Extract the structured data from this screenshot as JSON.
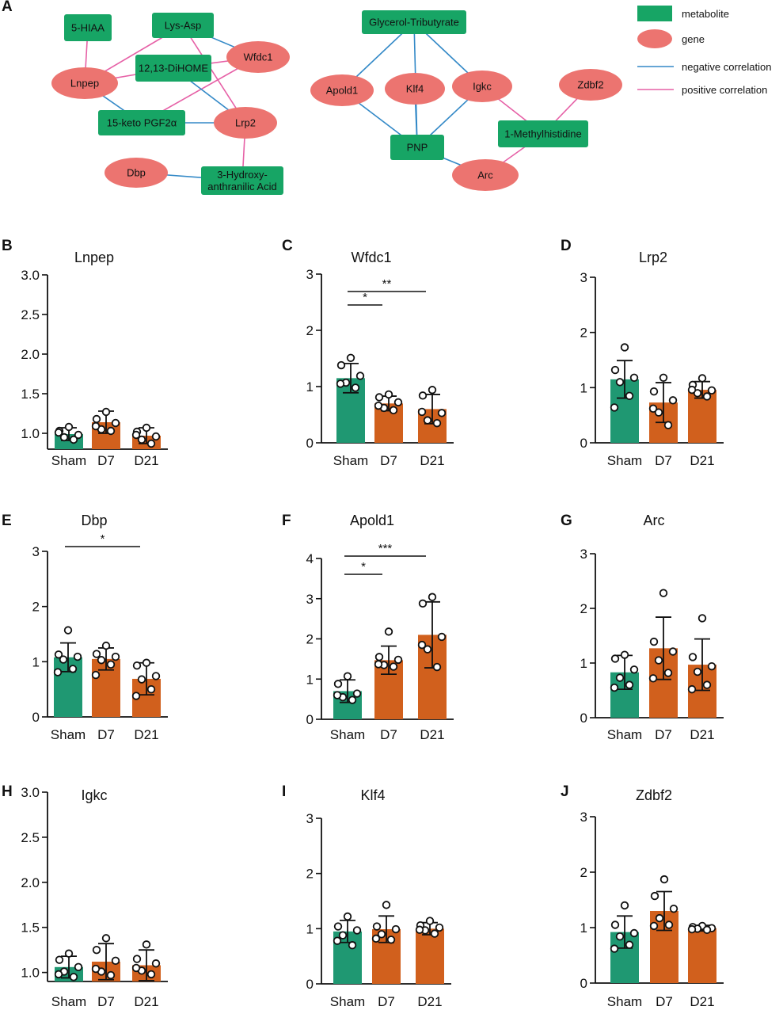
{
  "panel_a": {
    "letter": "A",
    "legend": [
      {
        "id": "metabolite",
        "label": "metabolite",
        "kind": "metabolite"
      },
      {
        "id": "gene",
        "label": "gene",
        "kind": "gene"
      },
      {
        "id": "neg",
        "label": "negative correlation",
        "kind": "neg"
      },
      {
        "id": "pos",
        "label": "positive correlation",
        "kind": "pos"
      }
    ],
    "nodes": [
      {
        "id": "5hiaa",
        "kind": "metabolite",
        "lines": [
          "5-HIAA"
        ]
      },
      {
        "id": "lysasp",
        "kind": "metabolite",
        "lines": [
          "Lys-Asp"
        ]
      },
      {
        "id": "wfdc1",
        "kind": "gene",
        "lines": [
          "Wfdc1"
        ]
      },
      {
        "id": "lnpep",
        "kind": "gene",
        "lines": [
          "Lnpep"
        ]
      },
      {
        "id": "dihome",
        "kind": "metabolite",
        "lines": [
          "12,13-DiHOME"
        ]
      },
      {
        "id": "pgf2a",
        "kind": "metabolite",
        "lines": [
          "15-keto PGF2α"
        ]
      },
      {
        "id": "lrp2",
        "kind": "gene",
        "lines": [
          "Lrp2"
        ]
      },
      {
        "id": "dbp",
        "kind": "gene",
        "lines": [
          "Dbp"
        ]
      },
      {
        "id": "haa",
        "kind": "metabolite",
        "lines": [
          "3-Hydroxy-",
          "anthranilic Acid"
        ]
      },
      {
        "id": "glycerol",
        "kind": "metabolite",
        "lines": [
          "Glycerol-Tributyrate"
        ]
      },
      {
        "id": "apold1",
        "kind": "gene",
        "lines": [
          "Apold1"
        ]
      },
      {
        "id": "klf4",
        "kind": "gene",
        "lines": [
          "Klf4"
        ]
      },
      {
        "id": "igkc",
        "kind": "gene",
        "lines": [
          "Igkc"
        ]
      },
      {
        "id": "zdbf2",
        "kind": "gene",
        "lines": [
          "Zdbf2"
        ]
      },
      {
        "id": "pnp",
        "kind": "metabolite",
        "lines": [
          "PNP"
        ]
      },
      {
        "id": "methylhis",
        "kind": "metabolite",
        "lines": [
          "1-Methylhistidine"
        ]
      },
      {
        "id": "arc",
        "kind": "gene",
        "lines": [
          "Arc"
        ]
      }
    ],
    "edges": [
      {
        "from": "5hiaa",
        "to": "lnpep",
        "sign": "positive"
      },
      {
        "from": "lysasp",
        "to": "lnpep",
        "sign": "positive"
      },
      {
        "from": "lysasp",
        "to": "wfdc1",
        "sign": "negative"
      },
      {
        "from": "lysasp",
        "to": "lrp2",
        "sign": "positive"
      },
      {
        "from": "lnpep",
        "to": "dihome",
        "sign": "positive"
      },
      {
        "from": "lnpep",
        "to": "pgf2a",
        "sign": "negative"
      },
      {
        "from": "wfdc1",
        "to": "dihome",
        "sign": "positive"
      },
      {
        "from": "wfdc1",
        "to": "pgf2a",
        "sign": "positive"
      },
      {
        "from": "dihome",
        "to": "lrp2",
        "sign": "negative"
      },
      {
        "from": "pgf2a",
        "to": "lrp2",
        "sign": "negative"
      },
      {
        "from": "lrp2",
        "to": "haa",
        "sign": "positive"
      },
      {
        "from": "dbp",
        "to": "haa",
        "sign": "negative"
      },
      {
        "from": "glycerol",
        "to": "apold1",
        "sign": "negative"
      },
      {
        "from": "glycerol",
        "to": "pnp",
        "sign": "negative"
      },
      {
        "from": "glycerol",
        "to": "igkc",
        "sign": "negative"
      },
      {
        "from": "apold1",
        "to": "pnp",
        "sign": "negative"
      },
      {
        "from": "klf4",
        "to": "pnp",
        "sign": "negative"
      },
      {
        "from": "igkc",
        "to": "pnp",
        "sign": "negative"
      },
      {
        "from": "igkc",
        "to": "methylhis",
        "sign": "positive"
      },
      {
        "from": "zdbf2",
        "to": "methylhis",
        "sign": "positive"
      },
      {
        "from": "pnp",
        "to": "arc",
        "sign": "negative"
      },
      {
        "from": "arc",
        "to": "methylhis",
        "sign": "positive"
      }
    ]
  },
  "colors": {
    "sham": "#1f9872",
    "treated": "#d1601d",
    "metabolite": "#17a565",
    "gene": "#ec7470",
    "negative_edge": "#3389c7",
    "positive_edge": "#e660a6",
    "text": "#111111",
    "axis": "#111111"
  },
  "chart_data": [
    {
      "letter": "B",
      "title": "Lnpep",
      "type": "bar",
      "categories": [
        "Sham",
        "D7",
        "D21"
      ],
      "values": [
        0.99,
        1.14,
        0.97
      ],
      "sd": [
        0.08,
        0.14,
        0.1
      ],
      "points": [
        [
          1.08,
          1.03,
          0.98,
          0.95,
          0.92,
          1.01
        ],
        [
          1.27,
          1.18,
          1.13,
          1.05,
          1.03,
          1.09
        ],
        [
          1.07,
          1.02,
          0.96,
          0.92,
          0.87,
          0.98
        ]
      ],
      "ylim": [
        0.8,
        3.0
      ],
      "yticks": [
        "1.0",
        "1.5",
        "2.0",
        "2.5",
        "3.0"
      ],
      "significance": []
    },
    {
      "letter": "C",
      "title": "Wfdc1",
      "type": "bar",
      "categories": [
        "Sham",
        "D7",
        "D21"
      ],
      "values": [
        1.15,
        0.7,
        0.6
      ],
      "sd": [
        0.26,
        0.13,
        0.26
      ],
      "points": [
        [
          1.51,
          1.38,
          1.19,
          1.07,
          0.98,
          1.05
        ],
        [
          0.86,
          0.81,
          0.72,
          0.62,
          0.58,
          0.66
        ],
        [
          0.94,
          0.84,
          0.53,
          0.4,
          0.35,
          0.55
        ]
      ],
      "ylim": [
        0,
        3
      ],
      "yticks": [
        "0",
        "1",
        "2",
        "3"
      ],
      "significance": [
        {
          "from": 0,
          "to": 1,
          "label": "*"
        },
        {
          "from": 0,
          "to": 2,
          "label": "**"
        }
      ]
    },
    {
      "letter": "D",
      "title": "Lrp2",
      "type": "bar",
      "categories": [
        "Sham",
        "D7",
        "D21"
      ],
      "values": [
        1.15,
        0.73,
        0.96
      ],
      "sd": [
        0.34,
        0.36,
        0.15
      ],
      "points": [
        [
          1.73,
          1.32,
          1.18,
          1.1,
          0.85,
          0.64
        ],
        [
          1.18,
          0.93,
          0.77,
          0.55,
          0.32,
          0.62
        ],
        [
          1.17,
          1.05,
          0.95,
          0.9,
          0.84,
          0.96
        ]
      ],
      "ylim": [
        0,
        3
      ],
      "yticks": [
        "0",
        "1",
        "2",
        "3"
      ],
      "significance": []
    },
    {
      "letter": "E",
      "title": "Dbp",
      "type": "bar",
      "categories": [
        "Sham",
        "D7",
        "D21"
      ],
      "values": [
        1.08,
        1.05,
        0.69
      ],
      "sd": [
        0.26,
        0.2,
        0.29
      ],
      "points": [
        [
          1.57,
          1.13,
          1.09,
          1.04,
          0.87,
          0.81
        ],
        [
          1.29,
          1.14,
          1.09,
          1.03,
          0.95,
          0.76
        ],
        [
          0.98,
          0.93,
          0.74,
          0.68,
          0.5,
          0.38
        ]
      ],
      "ylim": [
        0,
        3
      ],
      "yticks": [
        "0",
        "1",
        "2",
        "3"
      ],
      "significance": [
        {
          "from": 0,
          "to": 2,
          "label": "*"
        }
      ]
    },
    {
      "letter": "F",
      "title": "Apold1",
      "type": "bar",
      "categories": [
        "Sham",
        "D7",
        "D21"
      ],
      "values": [
        0.7,
        1.47,
        2.1
      ],
      "sd": [
        0.28,
        0.35,
        0.82
      ],
      "points": [
        [
          1.07,
          0.88,
          0.64,
          0.55,
          0.48,
          0.6
        ],
        [
          2.18,
          1.55,
          1.48,
          1.35,
          1.31,
          1.37
        ],
        [
          3.04,
          2.88,
          2.05,
          1.74,
          1.3,
          1.85
        ]
      ],
      "ylim": [
        0,
        4
      ],
      "yticks": [
        "0",
        "1",
        "2",
        "3",
        "4"
      ],
      "significance": [
        {
          "from": 0,
          "to": 1,
          "label": "*"
        },
        {
          "from": 0,
          "to": 2,
          "label": "***"
        }
      ]
    },
    {
      "letter": "G",
      "title": "Arc",
      "type": "bar",
      "categories": [
        "Sham",
        "D7",
        "D21"
      ],
      "values": [
        0.83,
        1.27,
        0.97
      ],
      "sd": [
        0.31,
        0.57,
        0.47
      ],
      "points": [
        [
          1.15,
          1.08,
          0.88,
          0.73,
          0.6,
          0.55
        ],
        [
          2.28,
          1.39,
          1.21,
          1.05,
          0.82,
          0.72
        ],
        [
          1.82,
          1.11,
          0.94,
          0.84,
          0.6,
          0.52
        ]
      ],
      "ylim": [
        0,
        3
      ],
      "yticks": [
        "0",
        "1",
        "2",
        "3"
      ],
      "significance": []
    },
    {
      "letter": "H",
      "title": "Igkc",
      "type": "bar",
      "categories": [
        "Sham",
        "D7",
        "D21"
      ],
      "values": [
        1.06,
        1.12,
        1.08
      ],
      "sd": [
        0.12,
        0.2,
        0.17
      ],
      "points": [
        [
          1.21,
          1.14,
          1.06,
          1.01,
          0.95,
          0.98
        ],
        [
          1.38,
          1.25,
          1.13,
          1.01,
          0.97,
          1.04
        ],
        [
          1.31,
          1.15,
          1.1,
          1.02,
          0.98,
          1.05
        ]
      ],
      "ylim": [
        0.9,
        3.0
      ],
      "yticks": [
        "1.0",
        "1.5",
        "2.0",
        "2.5",
        "3.0"
      ],
      "significance": []
    },
    {
      "letter": "I",
      "title": "Klf4",
      "type": "bar",
      "categories": [
        "Sham",
        "D7",
        "D21"
      ],
      "values": [
        0.95,
        0.99,
        1.0
      ],
      "sd": [
        0.2,
        0.24,
        0.11
      ],
      "points": [
        [
          1.22,
          1.04,
          0.97,
          0.88,
          0.7,
          0.78
        ],
        [
          1.43,
          1.04,
          0.99,
          0.9,
          0.8,
          0.82
        ],
        [
          1.14,
          1.06,
          1.02,
          0.97,
          0.91,
          0.98
        ]
      ],
      "ylim": [
        0,
        3
      ],
      "yticks": [
        "0",
        "1",
        "2",
        "3"
      ],
      "significance": []
    },
    {
      "letter": "J",
      "title": "Zdbf2",
      "type": "bar",
      "categories": [
        "Sham",
        "D7",
        "D21"
      ],
      "values": [
        0.92,
        1.3,
        0.99
      ],
      "sd": [
        0.29,
        0.35,
        0.05
      ],
      "points": [
        [
          1.4,
          1.05,
          0.9,
          0.84,
          0.69,
          0.62
        ],
        [
          1.87,
          1.57,
          1.34,
          1.17,
          1.05,
          1.03
        ],
        [
          1.03,
          1.01,
          0.99,
          0.98,
          0.96,
          0.97
        ]
      ],
      "ylim": [
        0,
        3
      ],
      "yticks": [
        "0",
        "1",
        "2",
        "3"
      ],
      "significance": []
    }
  ]
}
